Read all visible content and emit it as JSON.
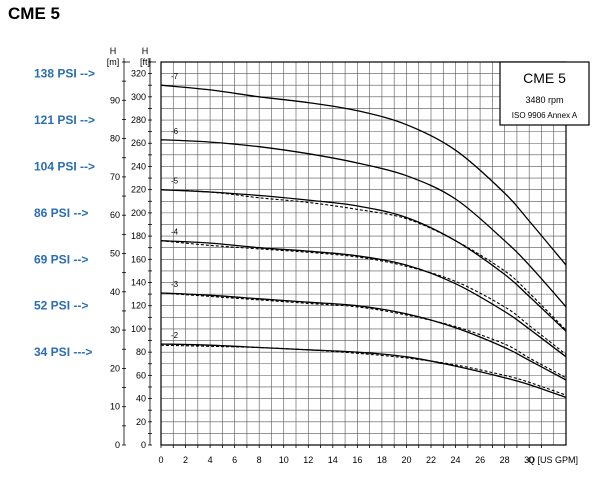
{
  "chart_data": {
    "type": "line",
    "title": "CME 5",
    "legend": {
      "model": "CME 5",
      "speed": "3480 rpm",
      "standard": "ISO 9906 Annex A",
      "placement": "top-right"
    },
    "psi_labels": [
      {
        "text": "138 PSI -->",
        "ft": 320
      },
      {
        "text": "121 PSI -->",
        "ft": 280
      },
      {
        "text": "104 PSI -->",
        "ft": 240
      },
      {
        "text": "86 PSI -->",
        "ft": 200
      },
      {
        "text": "69 PSI -->",
        "ft": 160
      },
      {
        "text": "52 PSI -->",
        "ft": 120
      },
      {
        "text": "34 PSI --->",
        "ft": 80
      }
    ],
    "y_m": {
      "label": "H",
      "unit": "[m]",
      "range": [
        0,
        100
      ],
      "ticks": [
        "0",
        "10",
        "20",
        "30",
        "40",
        "50",
        "60",
        "70",
        "80",
        "90"
      ],
      "tick_values": [
        0,
        10,
        20,
        30,
        40,
        50,
        60,
        70,
        80,
        90
      ]
    },
    "y_ft": {
      "label": "H",
      "unit": "[ft]",
      "range": [
        0,
        330
      ],
      "ticks": [
        "0",
        "20",
        "40",
        "60",
        "80",
        "100",
        "120",
        "140",
        "160",
        "180",
        "200",
        "220",
        "240",
        "260",
        "280",
        "300",
        "320"
      ],
      "tick_values": [
        0,
        20,
        40,
        60,
        80,
        100,
        120,
        140,
        160,
        180,
        200,
        220,
        240,
        260,
        280,
        300,
        320
      ]
    },
    "x": {
      "label": "Q [US GPM]",
      "range": [
        0,
        33
      ],
      "ticks": [
        "0",
        "2",
        "4",
        "6",
        "8",
        "10",
        "12",
        "14",
        "16",
        "18",
        "20",
        "22",
        "24",
        "26",
        "28",
        "30"
      ],
      "tick_values": [
        0,
        2,
        4,
        6,
        8,
        10,
        12,
        14,
        16,
        18,
        20,
        22,
        24,
        26,
        28,
        30
      ]
    },
    "grid": true,
    "x_values": [
      0,
      4,
      8,
      12,
      16,
      20,
      24,
      28,
      30,
      33
    ],
    "series": [
      {
        "label": "-7",
        "solid": [
          310,
          306,
          300,
          295,
          288,
          276,
          254,
          217,
          193,
          155
        ],
        "dashed": null
      },
      {
        "label": "-6",
        "solid": [
          263,
          261,
          257,
          251,
          243,
          232,
          212,
          176,
          155,
          119
        ]
      },
      {
        "label": "-5",
        "solid": [
          220,
          218,
          215,
          211,
          206,
          196,
          176,
          147,
          128,
          98
        ],
        "dashed": [
          220,
          218,
          213,
          209,
          203,
          195,
          176,
          150,
          131,
          99
        ]
      },
      {
        "label": "-4",
        "solid": [
          176,
          174,
          170,
          167,
          163,
          155,
          139,
          115,
          100,
          76
        ],
        "dashed": [
          176,
          172,
          169,
          166,
          162,
          154,
          141,
          119,
          103,
          78
        ]
      },
      {
        "label": "-3",
        "solid": [
          131,
          129,
          126,
          123,
          120,
          113,
          101,
          84,
          73,
          56
        ],
        "dashed": [
          131,
          128,
          125,
          122,
          119,
          112,
          102,
          87,
          75,
          58
        ]
      },
      {
        "label": "-2",
        "solid": [
          87,
          86,
          84,
          82,
          80,
          76,
          68,
          58,
          52,
          41
        ],
        "dashed": [
          86,
          85,
          84,
          82,
          79,
          75,
          69,
          60,
          54,
          43
        ]
      }
    ]
  }
}
